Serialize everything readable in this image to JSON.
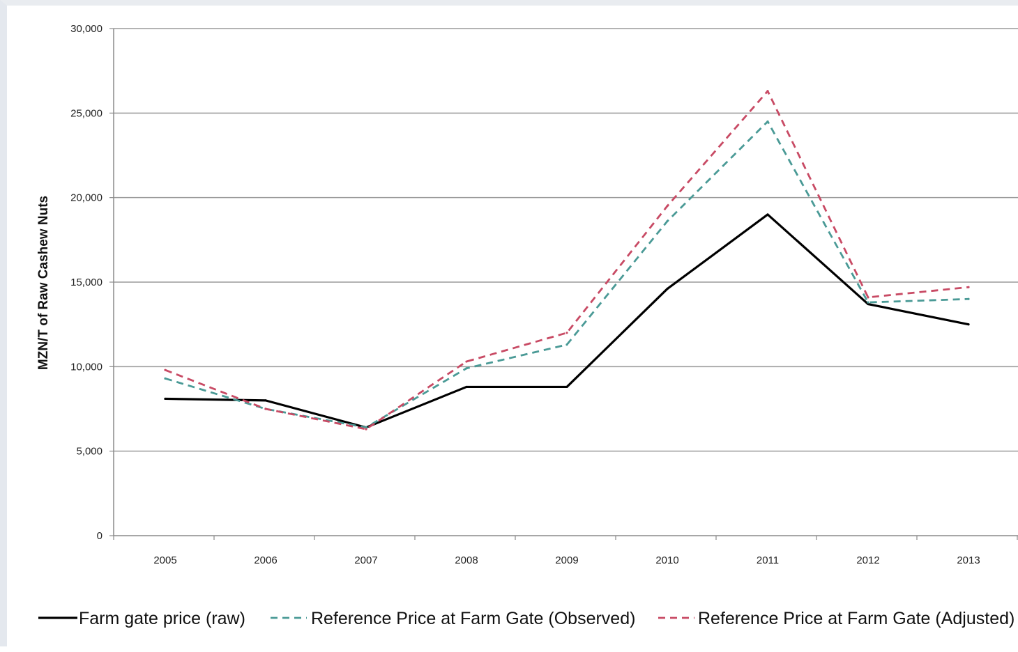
{
  "chart_data": {
    "type": "line",
    "title": "",
    "xlabel": "",
    "ylabel": "MZN/T of Raw Cashew Nuts",
    "categories": [
      "2005",
      "2006",
      "2007",
      "2008",
      "2009",
      "2010",
      "2011",
      "2012",
      "2013"
    ],
    "ylim": [
      0,
      30000
    ],
    "yticks": [
      0,
      5000,
      10000,
      15000,
      20000,
      25000,
      30000
    ],
    "ytick_labels": [
      "0",
      "5,000",
      "10,000",
      "15,000",
      "20,000",
      "25,000",
      "30,000"
    ],
    "grid": true,
    "legend_position": "bottom",
    "series": [
      {
        "name": "Farm gate price (raw)",
        "color": "#000000",
        "style": "solid",
        "values": [
          8100,
          8000,
          6400,
          8800,
          8800,
          14600,
          19000,
          13700,
          12500
        ]
      },
      {
        "name": "Reference Price at Farm Gate (Observed)",
        "color": "#4a9a96",
        "style": "dashed",
        "values": [
          9300,
          7500,
          6400,
          9900,
          11300,
          18600,
          24500,
          13800,
          14000
        ]
      },
      {
        "name": "Reference Price at Farm Gate (Adjusted)",
        "color": "#c84a64",
        "style": "dashed",
        "values": [
          9800,
          7500,
          6300,
          10300,
          12000,
          19500,
          26300,
          14100,
          14700
        ]
      }
    ]
  }
}
